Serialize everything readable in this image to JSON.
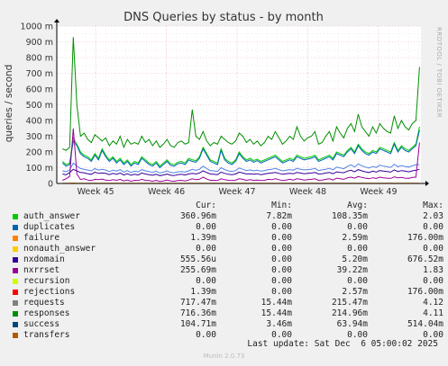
{
  "chart_data": {
    "type": "line",
    "title": "DNS Queries by status - by month",
    "ylabel": "queries / second",
    "ylim": [
      0,
      1000
    ],
    "yticks": [
      0,
      100,
      200,
      300,
      400,
      500,
      600,
      700,
      800,
      900,
      1000
    ],
    "ytick_labels": [
      "0",
      "100 m",
      "200 m",
      "300 m",
      "400 m",
      "500 m",
      "600 m",
      "700 m",
      "800 m",
      "900 m",
      "1000 m"
    ],
    "x_range_weeks": [
      44.45,
      49.6
    ],
    "xticks": [
      45,
      46,
      47,
      48,
      49
    ],
    "xtick_labels": [
      "Week 45",
      "Week 46",
      "Week 47",
      "Week 48",
      "Week 49"
    ],
    "grid": true,
    "side_label": "RRDTOOL / TOBI OETIKER",
    "series": [
      {
        "name": "requests",
        "color": "#00cc00",
        "values": [
          140,
          120,
          130,
          290,
          250,
          200,
          180,
          170,
          150,
          190,
          160,
          220,
          180,
          150,
          170,
          140,
          160,
          130,
          150,
          120,
          140,
          130,
          170,
          150,
          130,
          120,
          140,
          110,
          130,
          150,
          125,
          120,
          135,
          140,
          130,
          160,
          150,
          145,
          170,
          230,
          190,
          150,
          140,
          130,
          220,
          160,
          140,
          130,
          150,
          200,
          170,
          150,
          160,
          145,
          155,
          140,
          150,
          160,
          170,
          180,
          160,
          140,
          150,
          160,
          150,
          180,
          170,
          160,
          165,
          170,
          180,
          150,
          160,
          170,
          180,
          160,
          200,
          190,
          180,
          210,
          230,
          200,
          250,
          220,
          200,
          190,
          210,
          200,
          230,
          220,
          210,
          200,
          260,
          210,
          240,
          220,
          210,
          230,
          250,
          360
        ]
      },
      {
        "name": "responses",
        "color": "#0066b3",
        "values": [
          130,
          110,
          120,
          270,
          240,
          190,
          170,
          160,
          140,
          180,
          150,
          210,
          170,
          140,
          160,
          130,
          150,
          120,
          140,
          110,
          130,
          120,
          160,
          140,
          120,
          110,
          130,
          100,
          120,
          140,
          115,
          110,
          125,
          130,
          120,
          150,
          140,
          135,
          160,
          220,
          180,
          140,
          130,
          120,
          210,
          150,
          130,
          120,
          140,
          190,
          160,
          140,
          150,
          135,
          145,
          130,
          140,
          150,
          160,
          170,
          150,
          130,
          140,
          150,
          140,
          170,
          160,
          150,
          155,
          160,
          170,
          140,
          150,
          160,
          170,
          150,
          190,
          180,
          170,
          200,
          220,
          190,
          240,
          210,
          190,
          180,
          200,
          190,
          220,
          210,
          200,
          190,
          250,
          200,
          230,
          210,
          200,
          220,
          240,
          340
        ]
      },
      {
        "name": "auth_answer",
        "color": "#008f00",
        "values": [
          220,
          210,
          230,
          930,
          500,
          300,
          320,
          280,
          260,
          310,
          290,
          270,
          290,
          240,
          270,
          250,
          300,
          230,
          280,
          250,
          260,
          250,
          300,
          260,
          280,
          240,
          270,
          230,
          250,
          280,
          240,
          230,
          260,
          270,
          250,
          260,
          470,
          300,
          280,
          330,
          270,
          240,
          260,
          250,
          300,
          280,
          260,
          250,
          270,
          320,
          300,
          260,
          280,
          250,
          270,
          240,
          260,
          300,
          280,
          330,
          290,
          250,
          270,
          300,
          280,
          360,
          300,
          270,
          290,
          300,
          330,
          250,
          260,
          300,
          330,
          270,
          360,
          320,
          290,
          350,
          380,
          330,
          440,
          360,
          330,
          300,
          360,
          320,
          380,
          350,
          330,
          320,
          430,
          350,
          400,
          360,
          340,
          380,
          400,
          740
        ]
      },
      {
        "name": "success",
        "color": "#4d82e6",
        "values": [
          80,
          75,
          85,
          130,
          110,
          95,
          90,
          85,
          80,
          95,
          85,
          90,
          85,
          75,
          85,
          78,
          88,
          72,
          82,
          70,
          78,
          74,
          88,
          80,
          76,
          70,
          78,
          66,
          72,
          80,
          70,
          68,
          74,
          76,
          72,
          80,
          90,
          84,
          90,
          110,
          95,
          82,
          80,
          76,
          100,
          88,
          80,
          76,
          82,
          98,
          90,
          82,
          86,
          80,
          84,
          78,
          82,
          88,
          90,
          96,
          88,
          80,
          84,
          88,
          84,
          96,
          90,
          86,
          88,
          90,
          96,
          82,
          86,
          90,
          96,
          86,
          104,
          98,
          94,
          108,
          118,
          104,
          124,
          112,
          104,
          98,
          108,
          102,
          116,
          110,
          106,
          102,
          122,
          106,
          114,
          108,
          104,
          112,
          118,
          120
        ]
      },
      {
        "name": "nxdomain",
        "color": "#330099",
        "values": [
          60,
          55,
          70,
          90,
          80,
          70,
          68,
          62,
          58,
          72,
          64,
          66,
          64,
          56,
          64,
          58,
          66,
          54,
          62,
          52,
          58,
          54,
          66,
          60,
          56,
          52,
          58,
          50,
          54,
          60,
          52,
          50,
          56,
          58,
          54,
          60,
          64,
          60,
          66,
          80,
          70,
          60,
          58,
          56,
          72,
          64,
          58,
          56,
          60,
          72,
          66,
          60,
          62,
          58,
          62,
          56,
          60,
          64,
          66,
          70,
          64,
          58,
          62,
          64,
          62,
          70,
          66,
          62,
          64,
          66,
          70,
          60,
          62,
          66,
          70,
          62,
          74,
          70,
          68,
          78,
          84,
          74,
          88,
          80,
          74,
          70,
          78,
          72,
          82,
          78,
          76,
          72,
          86,
          76,
          82,
          78,
          74,
          80,
          84,
          90
        ]
      },
      {
        "name": "nxrrset",
        "color": "#990099",
        "values": [
          20,
          30,
          45,
          350,
          60,
          25,
          30,
          22,
          18,
          26,
          24,
          28,
          22,
          18,
          24,
          20,
          26,
          16,
          22,
          14,
          20,
          18,
          26,
          20,
          18,
          14,
          20,
          12,
          16,
          22,
          16,
          14,
          18,
          20,
          16,
          22,
          30,
          24,
          26,
          40,
          28,
          20,
          20,
          18,
          30,
          24,
          20,
          18,
          22,
          30,
          26,
          20,
          24,
          20,
          22,
          18,
          20,
          26,
          24,
          30,
          24,
          18,
          22,
          26,
          22,
          30,
          26,
          22,
          24,
          26,
          30,
          20,
          22,
          26,
          30,
          22,
          34,
          30,
          26,
          36,
          40,
          34,
          44,
          38,
          34,
          30,
          36,
          32,
          40,
          36,
          34,
          32,
          42,
          36,
          38,
          34,
          32,
          38,
          40,
          260
        ]
      },
      {
        "name": "failure",
        "color": "#ff8000",
        "values": [
          2,
          2,
          2,
          3,
          2,
          2,
          2,
          2,
          2,
          2,
          2,
          2,
          2,
          2,
          2,
          2,
          2,
          2,
          2,
          2,
          2,
          2,
          2,
          2,
          2,
          2,
          2,
          2,
          2,
          2,
          2,
          2,
          2,
          2,
          2,
          2,
          2,
          2,
          2,
          2,
          2,
          2,
          2,
          2,
          2,
          2,
          2,
          2,
          2,
          2,
          2,
          2,
          2,
          2,
          2,
          2,
          2,
          2,
          2,
          2,
          2,
          2,
          2,
          2,
          2,
          2,
          2,
          2,
          2,
          2,
          2,
          2,
          2,
          2,
          2,
          2,
          2,
          2,
          2,
          2,
          2,
          2,
          2,
          2,
          2,
          2,
          2,
          2,
          2,
          2,
          2,
          2,
          2,
          2,
          2,
          2,
          2,
          2,
          2,
          2
        ]
      },
      {
        "name": "rejections",
        "color": "#cc0000",
        "values": [
          0,
          0,
          0,
          0,
          0,
          0,
          0,
          0,
          0,
          0,
          0,
          0,
          0,
          0,
          0,
          0,
          0,
          0,
          0,
          0,
          0,
          0,
          0,
          0,
          0,
          0,
          0,
          0,
          0,
          0,
          0,
          0,
          0,
          0,
          0,
          0,
          0,
          0,
          0,
          0,
          0,
          0,
          0,
          0,
          0,
          0,
          0,
          0,
          0,
          0,
          0,
          0,
          0,
          0,
          0,
          0,
          0,
          0,
          0,
          0,
          0,
          0,
          0,
          0,
          0,
          0,
          0,
          0,
          0,
          0,
          0,
          0,
          0,
          0,
          0,
          0,
          0,
          0,
          0,
          0,
          0,
          0,
          0,
          0,
          0,
          0,
          0,
          0,
          0,
          0,
          0,
          0,
          0,
          0,
          0,
          0,
          0,
          0,
          0,
          0
        ]
      }
    ]
  },
  "legend": {
    "headers": {
      "cur": "Cur:",
      "min": "Min:",
      "avg": "Avg:",
      "max": "Max:"
    },
    "rows": [
      {
        "name": "auth_answer",
        "color": "#00cc00",
        "cur": "360.96m",
        "min": "7.82m",
        "avg": "108.35m",
        "max": "2.03"
      },
      {
        "name": "duplicates",
        "color": "#0066b3",
        "cur": "0.00",
        "min": "0.00",
        "avg": "0.00",
        "max": "0.00"
      },
      {
        "name": "failure",
        "color": "#ff8000",
        "cur": "1.39m",
        "min": "0.00",
        "avg": "2.59m",
        "max": "176.00m"
      },
      {
        "name": "nonauth_answer",
        "color": "#ffcc00",
        "cur": "0.00",
        "min": "0.00",
        "avg": "0.00",
        "max": "0.00"
      },
      {
        "name": "nxdomain",
        "color": "#330099",
        "cur": "555.56u",
        "min": "0.00",
        "avg": "5.20m",
        "max": "676.52m"
      },
      {
        "name": "nxrrset",
        "color": "#990099",
        "cur": "255.69m",
        "min": "0.00",
        "avg": "39.22m",
        "max": "1.83"
      },
      {
        "name": "recursion",
        "color": "#ccff00",
        "cur": "0.00",
        "min": "0.00",
        "avg": "0.00",
        "max": "0.00"
      },
      {
        "name": "rejections",
        "color": "#ff0000",
        "cur": "1.39m",
        "min": "0.00",
        "avg": "2.57m",
        "max": "176.00m"
      },
      {
        "name": "requests",
        "color": "#808080",
        "cur": "717.47m",
        "min": "15.44m",
        "avg": "215.47m",
        "max": "4.12"
      },
      {
        "name": "responses",
        "color": "#008f00",
        "cur": "716.36m",
        "min": "15.44m",
        "avg": "214.96m",
        "max": "4.11"
      },
      {
        "name": "success",
        "color": "#00487d",
        "cur": "104.71m",
        "min": "3.46m",
        "avg": "63.94m",
        "max": "514.04m"
      },
      {
        "name": "transfers",
        "color": "#b35a00",
        "cur": "0.00",
        "min": "0.00",
        "avg": "0.00",
        "max": "0.00"
      }
    ]
  },
  "footer": {
    "last_update": "Last update: Sat Dec  6 05:00:02 2025",
    "munin": "Munin 2.0.73"
  }
}
